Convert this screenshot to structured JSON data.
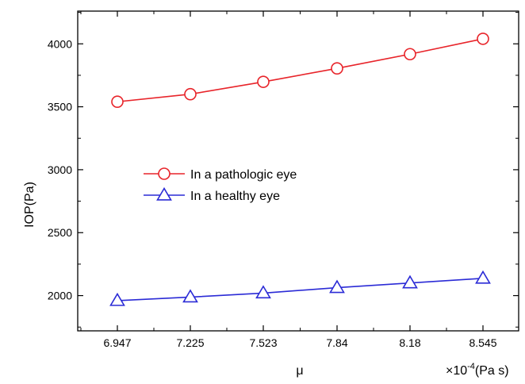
{
  "chart_data": {
    "type": "line",
    "categories": [
      "6.947",
      "7.225",
      "7.523",
      "7.84",
      "8.18",
      "8.545"
    ],
    "series": [
      {
        "name": "In a pathologic eye",
        "values": [
          3540,
          3600,
          3698,
          3805,
          3918,
          4040
        ],
        "color": "#e8242a",
        "marker": "circle"
      },
      {
        "name": "In a healthy eye",
        "values": [
          1960,
          1988,
          2020,
          2063,
          2100,
          2137
        ],
        "color": "#2b2bd6",
        "marker": "triangle"
      }
    ],
    "xlabel": "μ",
    "xunit_prefix": "×10",
    "xunit_exponent": "-4",
    "xunit_suffix": "(Pa s)",
    "ylabel": "IOP(Pa)",
    "ylim": [
      1720,
      4260
    ],
    "yticks": [
      2000,
      2500,
      3000,
      3500,
      4000
    ],
    "legend_position": "center-left",
    "grid": false
  }
}
